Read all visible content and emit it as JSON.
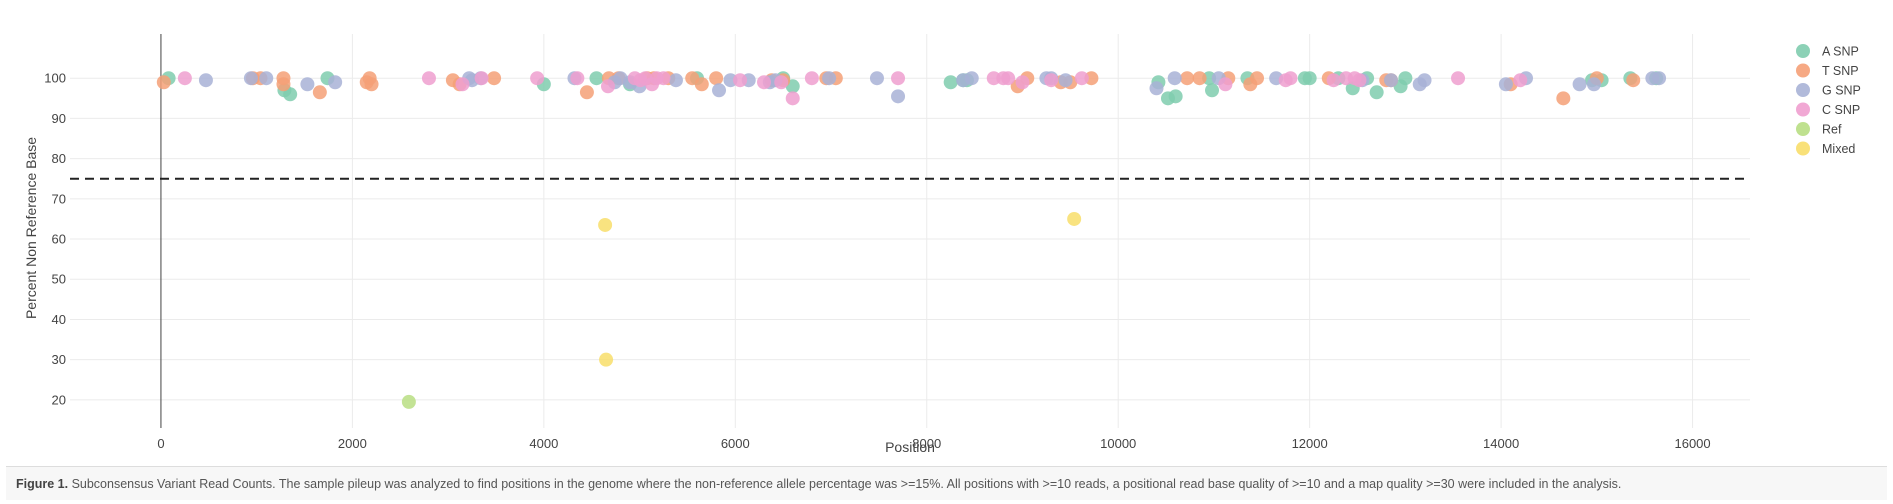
{
  "figure": {
    "caption_label": "Figure 1.",
    "caption_text": " Subconsensus Variant Read Counts. The sample pileup was analyzed to find positions in the genome where the non-reference allele percentage was >=15%. All positions with >=10 reads, a positional read base quality of >=10 and a map quality >=30 were included in the analysis."
  },
  "chart_data": {
    "type": "scatter",
    "title": "",
    "xlabel": "Position",
    "ylabel": "Percent Non Reference Base",
    "xlim": [
      -950,
      16600
    ],
    "ylim": [
      13,
      111
    ],
    "x_ticks": [
      0,
      2000,
      4000,
      6000,
      8000,
      10000,
      12000,
      14000,
      16000
    ],
    "y_ticks": [
      20,
      30,
      40,
      50,
      60,
      70,
      80,
      90,
      100
    ],
    "x_tick_labels": [
      "0",
      "2000",
      "4000",
      "6000",
      "8000",
      "10000",
      "12000",
      "14000",
      "16000"
    ],
    "y_tick_labels": [
      "20",
      "30",
      "40",
      "50",
      "60",
      "70",
      "80",
      "90",
      "100"
    ],
    "grid": true,
    "legend_position": "right",
    "threshold": {
      "y": 75,
      "style": "dashed"
    },
    "series": [
      {
        "name": "A SNP",
        "color": "#7fccae",
        "points": [
          [
            80,
            100
          ],
          [
            1290,
            97
          ],
          [
            1350,
            96
          ],
          [
            1740,
            100
          ],
          [
            4000,
            98.5
          ],
          [
            4550,
            100
          ],
          [
            4900,
            98.5
          ],
          [
            5600,
            100
          ],
          [
            6500,
            100
          ],
          [
            6600,
            98
          ],
          [
            8250,
            99
          ],
          [
            8380,
            99.5
          ],
          [
            8420,
            99.5
          ],
          [
            10420,
            99
          ],
          [
            10520,
            95
          ],
          [
            10600,
            95.5
          ],
          [
            10950,
            100
          ],
          [
            10980,
            97
          ],
          [
            11350,
            100
          ],
          [
            11950,
            100
          ],
          [
            12000,
            100
          ],
          [
            12300,
            100
          ],
          [
            12450,
            97.5
          ],
          [
            12600,
            100
          ],
          [
            12700,
            96.5
          ],
          [
            12950,
            98
          ],
          [
            13000,
            100
          ],
          [
            14950,
            99.5
          ],
          [
            15050,
            99.5
          ],
          [
            15350,
            100
          ],
          [
            15620,
            100
          ]
        ]
      },
      {
        "name": "T SNP",
        "color": "#f5a077",
        "points": [
          [
            30,
            99
          ],
          [
            960,
            100
          ],
          [
            1040,
            100
          ],
          [
            1280,
            100
          ],
          [
            1280,
            98.5
          ],
          [
            1660,
            96.5
          ],
          [
            2150,
            99
          ],
          [
            2180,
            100
          ],
          [
            2200,
            98.5
          ],
          [
            3050,
            99.5
          ],
          [
            3120,
            98.5
          ],
          [
            3480,
            100
          ],
          [
            4450,
            96.5
          ],
          [
            4680,
            100
          ],
          [
            4780,
            100
          ],
          [
            5080,
            100
          ],
          [
            5150,
            100
          ],
          [
            5300,
            100
          ],
          [
            5550,
            100
          ],
          [
            5650,
            98.5
          ],
          [
            5800,
            100
          ],
          [
            6380,
            99.5
          ],
          [
            6500,
            99.5
          ],
          [
            6950,
            100
          ],
          [
            7050,
            100
          ],
          [
            9050,
            100
          ],
          [
            8950,
            98
          ],
          [
            9400,
            99
          ],
          [
            9500,
            99
          ],
          [
            9720,
            100
          ],
          [
            10720,
            100
          ],
          [
            10850,
            100
          ],
          [
            11150,
            100
          ],
          [
            11380,
            98.5
          ],
          [
            11450,
            100
          ],
          [
            12200,
            100
          ],
          [
            12800,
            99.5
          ],
          [
            12850,
            99.5
          ],
          [
            14100,
            98.5
          ],
          [
            14650,
            95
          ],
          [
            15000,
            100
          ],
          [
            15380,
            99.5
          ]
        ]
      },
      {
        "name": "G SNP",
        "color": "#a8b2d6",
        "points": [
          [
            470,
            99.5
          ],
          [
            940,
            100
          ],
          [
            1100,
            100
          ],
          [
            1530,
            98.5
          ],
          [
            1820,
            99
          ],
          [
            3220,
            100
          ],
          [
            3250,
            99.5
          ],
          [
            3340,
            100
          ],
          [
            4320,
            100
          ],
          [
            4740,
            99
          ],
          [
            4800,
            100
          ],
          [
            4900,
            99
          ],
          [
            5000,
            98
          ],
          [
            5380,
            99.5
          ],
          [
            5830,
            97
          ],
          [
            5950,
            99.5
          ],
          [
            6140,
            99.5
          ],
          [
            6360,
            99
          ],
          [
            6420,
            99.5
          ],
          [
            6980,
            100
          ],
          [
            7480,
            100
          ],
          [
            7700,
            95.5
          ],
          [
            8380,
            99.5
          ],
          [
            8470,
            100
          ],
          [
            9250,
            100
          ],
          [
            9300,
            100
          ],
          [
            9450,
            99.5
          ],
          [
            10400,
            97.5
          ],
          [
            10590,
            100
          ],
          [
            11050,
            100
          ],
          [
            11650,
            100
          ],
          [
            12550,
            99.5
          ],
          [
            12850,
            99.5
          ],
          [
            13150,
            98.5
          ],
          [
            13200,
            99.5
          ],
          [
            14050,
            98.5
          ],
          [
            14260,
            100
          ],
          [
            14820,
            98.5
          ],
          [
            14970,
            98.5
          ],
          [
            15580,
            100
          ],
          [
            15650,
            100
          ]
        ]
      },
      {
        "name": "C SNP",
        "color": "#ef9fcf",
        "points": [
          [
            250,
            100
          ],
          [
            2800,
            100
          ],
          [
            3150,
            98.5
          ],
          [
            3350,
            100
          ],
          [
            3930,
            100
          ],
          [
            4350,
            100
          ],
          [
            4670,
            98
          ],
          [
            4950,
            100
          ],
          [
            5010,
            99.5
          ],
          [
            5060,
            100
          ],
          [
            5130,
            98.5
          ],
          [
            5180,
            100
          ],
          [
            5250,
            100
          ],
          [
            6050,
            99.5
          ],
          [
            6300,
            99
          ],
          [
            6480,
            99
          ],
          [
            6600,
            95
          ],
          [
            6800,
            100
          ],
          [
            7700,
            100
          ],
          [
            8700,
            100
          ],
          [
            8800,
            100
          ],
          [
            8850,
            100
          ],
          [
            9000,
            99
          ],
          [
            9300,
            99.5
          ],
          [
            9620,
            100
          ],
          [
            11120,
            98.5
          ],
          [
            11750,
            99.5
          ],
          [
            11800,
            100
          ],
          [
            12250,
            99.5
          ],
          [
            12380,
            100
          ],
          [
            12470,
            100
          ],
          [
            12520,
            99.5
          ],
          [
            13550,
            100
          ],
          [
            14200,
            99.5
          ]
        ]
      },
      {
        "name": "Ref",
        "color": "#b8de83",
        "points": [
          [
            2590,
            19.5
          ]
        ]
      },
      {
        "name": "Mixed",
        "color": "#f8de6a",
        "points": [
          [
            4640,
            63.5
          ],
          [
            4650,
            30
          ],
          [
            9540,
            65
          ]
        ]
      }
    ]
  }
}
